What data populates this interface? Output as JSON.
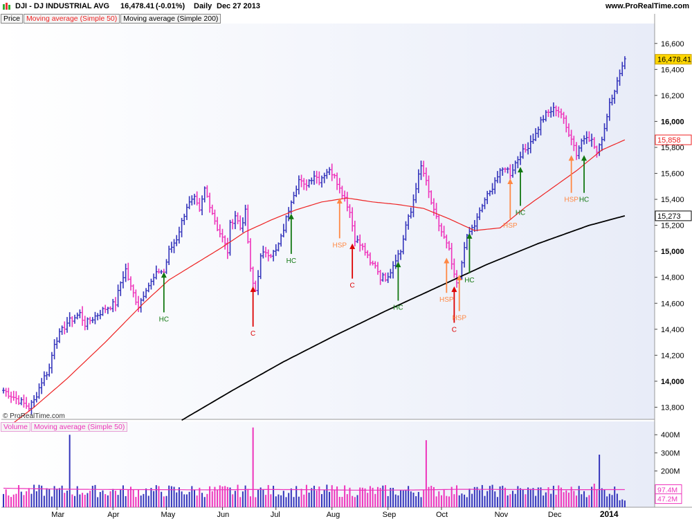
{
  "header": {
    "symbol": "DJI - DJ INDUSTRIAL AVG",
    "last": "16,478.41",
    "change": "(-0.01%)",
    "period": "Daily",
    "date": "Dec 27 2013",
    "site": "www.ProRealTime.com"
  },
  "price_panel": {
    "legend": [
      "Price",
      "Moving average (Simple 50)",
      "Moving average (Simple 200)"
    ],
    "watermark": "© ProRealTime.com",
    "last_label": "16,478.41",
    "ma50_label": "15,858",
    "ma200_label": "15,273"
  },
  "volume_panel": {
    "legend": [
      "Volume",
      "Moving average (Simple 50)"
    ],
    "vol_label": "47.2M",
    "ma_label": "97.4M"
  },
  "colors": {
    "up_bar": "#3333bb",
    "down_bar": "#ee33bb",
    "ma50": "#ee2222",
    "ma200": "#000000",
    "hc_arrow": "#117711",
    "hsp_arrow": "#ff8844",
    "c_arrow": "#dd0000",
    "last_badge": "#ffd700",
    "panel_bg": "#e8ecf8"
  },
  "chart_data": {
    "type": "bar",
    "price_axis": {
      "ylim": [
        13600,
        16700
      ],
      "ticks": [
        "13,800",
        "14,000",
        "14,200",
        "14,400",
        "14,600",
        "14,800",
        "15,000",
        "15,200",
        "15,400",
        "15,600",
        "15,800",
        "16,000",
        "16,200",
        "16,400",
        "16,600"
      ],
      "tick_values": [
        13800,
        14000,
        14200,
        14400,
        14600,
        14800,
        15000,
        15200,
        15400,
        15600,
        15800,
        16000,
        16200,
        16400,
        16600
      ],
      "major": [
        14000,
        15000,
        16000
      ]
    },
    "volume_axis": {
      "ylim": [
        0,
        450
      ],
      "ticks": [
        "200M",
        "300M",
        "400M"
      ],
      "tick_values": [
        200,
        300,
        400
      ]
    },
    "x_axis": {
      "labels": [
        "Mar",
        "Apr",
        "May",
        "Jun",
        "Jul",
        "Aug",
        "Sep",
        "Oct",
        "Nov",
        "Dec",
        "2014"
      ],
      "label_days": [
        21,
        43,
        64,
        86,
        107,
        129,
        151,
        172,
        195,
        216,
        238
      ]
    },
    "anchors": [
      [
        0,
        13930
      ],
      [
        10,
        13800
      ],
      [
        12,
        13850
      ],
      [
        15,
        14000
      ],
      [
        18,
        14100
      ],
      [
        20,
        14300
      ],
      [
        25,
        14450
      ],
      [
        30,
        14520
      ],
      [
        32,
        14440
      ],
      [
        36,
        14500
      ],
      [
        40,
        14560
      ],
      [
        44,
        14600
      ],
      [
        46,
        14760
      ],
      [
        48,
        14860
      ],
      [
        50,
        14720
      ],
      [
        53,
        14580
      ],
      [
        56,
        14720
      ],
      [
        58,
        14760
      ],
      [
        61,
        14850
      ],
      [
        63,
        14840
      ],
      [
        65,
        15000
      ],
      [
        68,
        15100
      ],
      [
        72,
        15350
      ],
      [
        75,
        15400
      ],
      [
        77,
        15300
      ],
      [
        79,
        15480
      ],
      [
        82,
        15300
      ],
      [
        84,
        15180
      ],
      [
        86,
        15100
      ],
      [
        88,
        15000
      ],
      [
        89,
        15200
      ],
      [
        91,
        15280
      ],
      [
        93,
        15180
      ],
      [
        95,
        15300
      ],
      [
        97,
        14850
      ],
      [
        98,
        14750
      ],
      [
        99,
        14700
      ],
      [
        101,
        14950
      ],
      [
        103,
        15000
      ],
      [
        105,
        14980
      ],
      [
        107,
        15000
      ],
      [
        109,
        15100
      ],
      [
        111,
        15250
      ],
      [
        113,
        15400
      ],
      [
        116,
        15550
      ],
      [
        118,
        15500
      ],
      [
        122,
        15590
      ],
      [
        124,
        15550
      ],
      [
        127,
        15620
      ],
      [
        130,
        15600
      ],
      [
        132,
        15480
      ],
      [
        134,
        15420
      ],
      [
        136,
        15300
      ],
      [
        138,
        15100
      ],
      [
        140,
        15050
      ],
      [
        142,
        15000
      ],
      [
        144,
        14900
      ],
      [
        146,
        14900
      ],
      [
        148,
        14800
      ],
      [
        150,
        14800
      ],
      [
        152,
        14850
      ],
      [
        154,
        14950
      ],
      [
        156,
        15000
      ],
      [
        158,
        15200
      ],
      [
        160,
        15300
      ],
      [
        162,
        15500
      ],
      [
        164,
        15650
      ],
      [
        165,
        15600
      ],
      [
        167,
        15450
      ],
      [
        169,
        15300
      ],
      [
        171,
        15200
      ],
      [
        173,
        15100
      ],
      [
        175,
        15000
      ],
      [
        177,
        14800
      ],
      [
        178,
        14750
      ],
      [
        179,
        14780
      ],
      [
        181,
        15050
      ],
      [
        183,
        15150
      ],
      [
        185,
        15200
      ],
      [
        187,
        15300
      ],
      [
        189,
        15400
      ],
      [
        191,
        15450
      ],
      [
        193,
        15550
      ],
      [
        195,
        15600
      ],
      [
        197,
        15650
      ],
      [
        199,
        15600
      ],
      [
        201,
        15680
      ],
      [
        203,
        15750
      ],
      [
        205,
        15780
      ],
      [
        207,
        15850
      ],
      [
        209,
        15900
      ],
      [
        211,
        16000
      ],
      [
        213,
        16050
      ],
      [
        215,
        16080
      ],
      [
        217,
        16100
      ],
      [
        219,
        16060
      ],
      [
        221,
        15950
      ],
      [
        223,
        15880
      ],
      [
        225,
        15750
      ],
      [
        227,
        15850
      ],
      [
        229,
        15900
      ],
      [
        231,
        15850
      ],
      [
        233,
        15760
      ],
      [
        234,
        15800
      ],
      [
        235,
        15880
      ],
      [
        236,
        15950
      ],
      [
        237,
        16050
      ],
      [
        238,
        16150
      ],
      [
        239,
        16200
      ],
      [
        240,
        16250
      ],
      [
        242,
        16350
      ],
      [
        243,
        16450
      ],
      [
        244,
        16480
      ]
    ],
    "ma50": [
      [
        0,
        13620
      ],
      [
        12,
        13800
      ],
      [
        25,
        14020
      ],
      [
        40,
        14300
      ],
      [
        55,
        14600
      ],
      [
        65,
        14780
      ],
      [
        75,
        14900
      ],
      [
        85,
        15020
      ],
      [
        95,
        15150
      ],
      [
        105,
        15240
      ],
      [
        115,
        15320
      ],
      [
        125,
        15380
      ],
      [
        135,
        15410
      ],
      [
        145,
        15380
      ],
      [
        155,
        15360
      ],
      [
        165,
        15330
      ],
      [
        175,
        15250
      ],
      [
        185,
        15160
      ],
      [
        195,
        15180
      ],
      [
        205,
        15340
      ],
      [
        215,
        15480
      ],
      [
        225,
        15620
      ],
      [
        235,
        15780
      ],
      [
        244,
        15858
      ]
    ],
    "ma200": [
      [
        70,
        13700
      ],
      [
        90,
        13930
      ],
      [
        110,
        14150
      ],
      [
        130,
        14350
      ],
      [
        150,
        14540
      ],
      [
        170,
        14720
      ],
      [
        190,
        14900
      ],
      [
        210,
        15060
      ],
      [
        230,
        15200
      ],
      [
        244,
        15273
      ]
    ],
    "volume_ma": [
      [
        0,
        105
      ],
      [
        20,
        100
      ],
      [
        40,
        98
      ],
      [
        60,
        97
      ],
      [
        80,
        96
      ],
      [
        100,
        98
      ],
      [
        120,
        97
      ],
      [
        140,
        94
      ],
      [
        160,
        95
      ],
      [
        180,
        99
      ],
      [
        200,
        98
      ],
      [
        220,
        97
      ],
      [
        244,
        97.4
      ]
    ],
    "volume_spikes": [
      [
        26,
        400
      ],
      [
        98,
        440
      ],
      [
        166,
        370
      ],
      [
        234,
        290
      ],
      [
        232,
        130
      ]
    ],
    "signals": [
      {
        "day": 63,
        "label": "HC",
        "dir": "up",
        "top": 14840,
        "bottom": 14530,
        "kind": "hc"
      },
      {
        "day": 98,
        "label": "C",
        "dir": "up",
        "top": 14730,
        "bottom": 14420,
        "kind": "c"
      },
      {
        "day": 113,
        "label": "HC",
        "dir": "up",
        "top": 15290,
        "bottom": 14980,
        "kind": "hc"
      },
      {
        "day": 132,
        "label": "HSP",
        "dir": "up",
        "top": 15410,
        "bottom": 15100,
        "kind": "hsp"
      },
      {
        "day": 137,
        "label": "C",
        "dir": "up",
        "top": 15060,
        "bottom": 14790,
        "kind": "c"
      },
      {
        "day": 155,
        "label": "HC",
        "dir": "up",
        "top": 14920,
        "bottom": 14620,
        "kind": "hc"
      },
      {
        "day": 174,
        "label": "HSP",
        "dir": "up",
        "top": 14950,
        "bottom": 14680,
        "kind": "hsp"
      },
      {
        "day": 177,
        "label": "C",
        "dir": "up",
        "top": 14730,
        "bottom": 14450,
        "kind": "c"
      },
      {
        "day": 179,
        "label": "HSP",
        "dir": "up",
        "top": 14820,
        "bottom": 14540,
        "kind": "hsp"
      },
      {
        "day": 183,
        "label": "HC",
        "dir": "up",
        "top": 15140,
        "bottom": 14830,
        "kind": "hc"
      },
      {
        "day": 199,
        "label": "HSP",
        "dir": "up",
        "top": 15560,
        "bottom": 15250,
        "kind": "hsp"
      },
      {
        "day": 203,
        "label": "HC",
        "dir": "up",
        "top": 15650,
        "bottom": 15350,
        "kind": "hc"
      },
      {
        "day": 223,
        "label": "HSP",
        "dir": "up",
        "top": 15740,
        "bottom": 15450,
        "kind": "hsp"
      },
      {
        "day": 228,
        "label": "HC",
        "dir": "up",
        "top": 15740,
        "bottom": 15450,
        "kind": "hc"
      }
    ]
  }
}
